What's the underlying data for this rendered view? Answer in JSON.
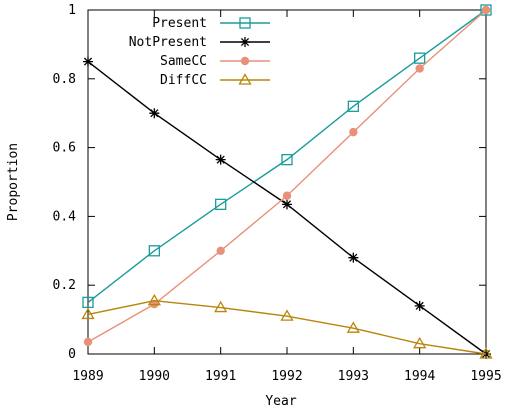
{
  "chart_data": {
    "type": "line",
    "title": "",
    "xlabel": "Year",
    "ylabel": "Proportion",
    "x": [
      1989,
      1990,
      1991,
      1992,
      1993,
      1994,
      1995
    ],
    "xlim": [
      1989,
      1995
    ],
    "ylim": [
      0,
      1
    ],
    "xticks": [
      "1989",
      "1990",
      "1991",
      "1992",
      "1993",
      "1994",
      "1995"
    ],
    "yticks": [
      "0",
      "0.2",
      "0.4",
      "0.6",
      "0.8",
      "1"
    ],
    "grid": false,
    "legend_position": "top-left",
    "series": [
      {
        "name": "Present",
        "color": "#1a9c9c",
        "marker": "open-square",
        "values": [
          0.15,
          0.3,
          0.435,
          0.565,
          0.72,
          0.86,
          1.0
        ]
      },
      {
        "name": "NotPresent",
        "color": "#000000",
        "marker": "asterisk",
        "values": [
          0.85,
          0.7,
          0.565,
          0.435,
          0.28,
          0.14,
          0.0
        ]
      },
      {
        "name": "SameCC",
        "color": "#e8907a",
        "marker": "filled-circle",
        "values": [
          0.035,
          0.145,
          0.3,
          0.46,
          0.645,
          0.83,
          1.0
        ]
      },
      {
        "name": "DiffCC",
        "color": "#b8860b",
        "marker": "open-triangle",
        "values": [
          0.115,
          0.155,
          0.135,
          0.11,
          0.075,
          0.03,
          0.0
        ]
      }
    ]
  }
}
